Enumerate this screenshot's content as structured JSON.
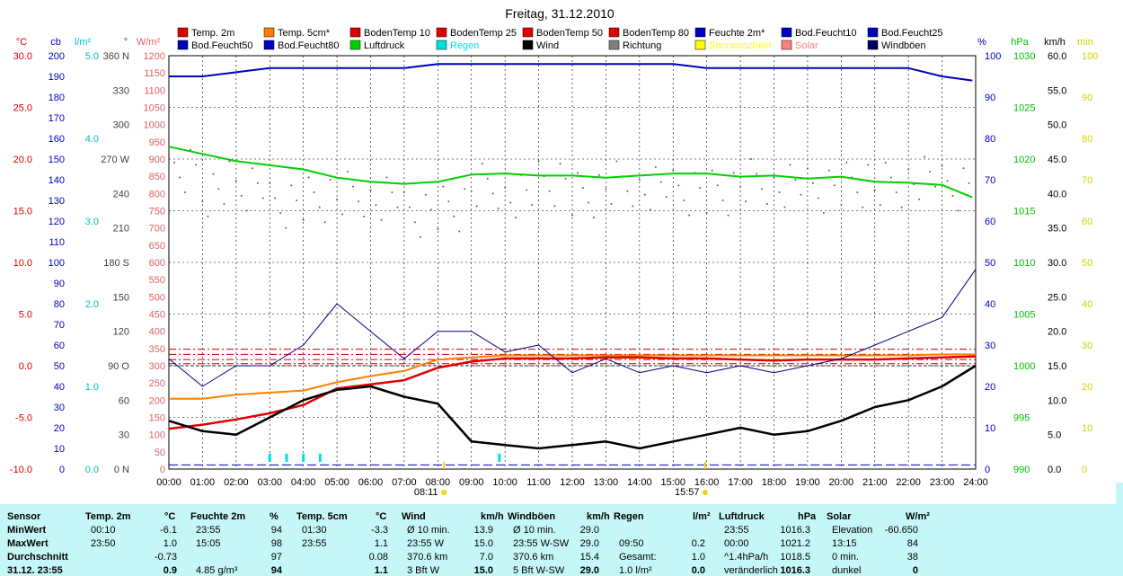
{
  "title": "Freitag, 31.12.2010",
  "legend": [
    {
      "label": "Temp. 2m",
      "color": "#e00000"
    },
    {
      "label": "Temp. 5cm*",
      "color": "#ff8000"
    },
    {
      "label": "BodenTemp 10",
      "color": "#e00000"
    },
    {
      "label": "BodenTemp 25",
      "color": "#e00000"
    },
    {
      "label": "BodenTemp 50",
      "color": "#e00000"
    },
    {
      "label": "BodenTemp 80",
      "color": "#e00000"
    },
    {
      "label": "Feuchte 2m*",
      "color": "#0000c0"
    },
    {
      "label": "Bod.Feucht10",
      "color": "#0000c0"
    },
    {
      "label": "Bod.Feucht25",
      "color": "#0000c0"
    },
    {
      "label": "Bod.Feucht50",
      "color": "#0000c0"
    },
    {
      "label": "Bod.Feucht80",
      "color": "#0000c0"
    },
    {
      "label": "Luftdruck",
      "color": "#00d000"
    },
    {
      "label": "Regen",
      "color": "#00e0e0"
    },
    {
      "label": "Wind",
      "color": "#000000"
    },
    {
      "label": "Richtung",
      "color": "#808080"
    },
    {
      "label": "Sonnenschein",
      "color": "#ffff00"
    },
    {
      "label": "Solar",
      "color": "#ff8080"
    },
    {
      "label": "Windböen",
      "color": "#000060"
    }
  ],
  "axes": {
    "temp": {
      "unit": "°C",
      "ticks": [
        "30.0",
        "25.0",
        "20.0",
        "15.0",
        "10.0",
        "5.0",
        "0.0",
        "-5.0",
        "-10.0"
      ],
      "color": "#e00000"
    },
    "cb": {
      "unit": "cb",
      "ticks": [
        "200",
        "190",
        "180",
        "170",
        "160",
        "150",
        "140",
        "130",
        "120",
        "110",
        "100",
        "90",
        "80",
        "70",
        "60",
        "50",
        "40",
        "30",
        "20",
        "10",
        "0"
      ],
      "color": "#0000c0"
    },
    "rain": {
      "unit": "l/m²",
      "ticks": [
        "5.0",
        "4.0",
        "3.0",
        "2.0",
        "1.0",
        "0.0"
      ],
      "color": "#00c0c0"
    },
    "dir": {
      "unit": "°",
      "ticks": [
        "360 N",
        "330",
        "300",
        "270 W",
        "240",
        "210",
        "180 S",
        "150",
        "120",
        "90 O",
        "60",
        "30",
        "0 N"
      ],
      "color": "#404040"
    },
    "solar": {
      "unit": "W/m²",
      "ticks": [
        "1200",
        "1150",
        "1100",
        "1050",
        "1000",
        "950",
        "900",
        "850",
        "800",
        "750",
        "700",
        "650",
        "600",
        "550",
        "500",
        "450",
        "400",
        "350",
        "300",
        "250",
        "200",
        "150",
        "100",
        "50",
        "0"
      ],
      "color": "#e06060"
    },
    "hum": {
      "unit": "%",
      "ticks": [
        "100",
        "90",
        "80",
        "70",
        "60",
        "50",
        "40",
        "30",
        "20",
        "10",
        "0"
      ],
      "color": "#0000c0"
    },
    "press": {
      "unit": "hPa",
      "ticks": [
        "1030",
        "1025",
        "1020",
        "1015",
        "1010",
        "1005",
        "1000",
        "995",
        "990"
      ],
      "color": "#00c000"
    },
    "wind": {
      "unit": "km/h",
      "ticks": [
        "60.0",
        "55.0",
        "50.0",
        "45.0",
        "40.0",
        "35.0",
        "30.0",
        "25.0",
        "20.0",
        "15.0",
        "10.0",
        "5.0",
        "0.0"
      ],
      "color": "#000000"
    },
    "min": {
      "unit": "min",
      "ticks": [
        "100",
        "90",
        "80",
        "70",
        "60",
        "50",
        "40",
        "30",
        "20",
        "10",
        "0"
      ],
      "color": "#d0d000"
    }
  },
  "x_ticks": [
    "00:00",
    "01:00",
    "02:00",
    "03:00",
    "04:00",
    "05:00",
    "06:00",
    "07:00",
    "08:00",
    "09:00",
    "10:00",
    "11:00",
    "12:00",
    "13:00",
    "14:00",
    "15:00",
    "16:00",
    "17:00",
    "18:00",
    "19:00",
    "20:00",
    "21:00",
    "22:00",
    "23:00",
    "24:00"
  ],
  "sunrise": "08:11",
  "sunset": "15:57",
  "chart_data": {
    "type": "line",
    "x_range_hours": [
      0,
      24
    ],
    "series": [
      {
        "name": "Temp. 2m",
        "axis": "temp",
        "color": "#e00000",
        "x": [
          0,
          1,
          2,
          3,
          4,
          5,
          6,
          7,
          8,
          9,
          10,
          11,
          12,
          13,
          14,
          15,
          16,
          17,
          18,
          19,
          20,
          21,
          22,
          23,
          24
        ],
        "y": [
          -6.1,
          -5.7,
          -5.2,
          -4.6,
          -3.8,
          -2.2,
          -1.8,
          -1.4,
          -0.2,
          0.4,
          0.7,
          0.7,
          0.7,
          0.8,
          0.8,
          0.7,
          0.7,
          0.6,
          0.5,
          0.6,
          0.6,
          0.6,
          0.7,
          0.8,
          0.9
        ]
      },
      {
        "name": "Temp. 5cm*",
        "axis": "temp",
        "color": "#ff8000",
        "x": [
          0,
          1,
          2,
          3,
          4,
          5,
          6,
          7,
          8,
          9,
          10,
          11,
          12,
          13,
          14,
          15,
          16,
          17,
          18,
          19,
          20,
          21,
          22,
          23,
          24
        ],
        "y": [
          -3.2,
          -3.2,
          -2.8,
          -2.6,
          -2.4,
          -1.6,
          -1.0,
          -0.5,
          0.6,
          0.8,
          1.0,
          1.0,
          1.0,
          1.0,
          1.0,
          1.0,
          1.0,
          1.0,
          1.0,
          1.0,
          1.0,
          1.0,
          1.0,
          1.1,
          1.1
        ]
      },
      {
        "name": "Feuchte 2m*",
        "axis": "hum",
        "color": "#0000c0",
        "x": [
          0,
          1,
          2,
          3,
          4,
          5,
          6,
          7,
          8,
          9,
          10,
          11,
          12,
          13,
          14,
          15,
          16,
          17,
          18,
          19,
          20,
          21,
          22,
          23,
          23.9
        ],
        "y": [
          95,
          95,
          96,
          97,
          97,
          97,
          97,
          97,
          98,
          98,
          98,
          98,
          98,
          98,
          98,
          98,
          97,
          97,
          97,
          97,
          97,
          97,
          97,
          95,
          94
        ]
      },
      {
        "name": "Luftdruck",
        "axis": "press",
        "color": "#00d000",
        "x": [
          0,
          1,
          2,
          3,
          4,
          5,
          6,
          7,
          8,
          9,
          10,
          11,
          12,
          13,
          14,
          15,
          16,
          17,
          18,
          19,
          20,
          21,
          22,
          23,
          23.9
        ],
        "y": [
          1021.2,
          1020.5,
          1019.8,
          1019.4,
          1019.0,
          1018.2,
          1017.8,
          1017.6,
          1017.8,
          1018.5,
          1018.6,
          1018.4,
          1018.4,
          1018.2,
          1018.4,
          1018.6,
          1018.6,
          1018.3,
          1018.4,
          1018.1,
          1018.3,
          1017.8,
          1017.7,
          1017.5,
          1016.3
        ]
      },
      {
        "name": "Wind",
        "axis": "wind",
        "color": "#000000",
        "x": [
          0,
          1,
          2,
          3,
          4,
          5,
          6,
          7,
          8,
          9,
          10,
          11,
          12,
          13,
          14,
          15,
          16,
          17,
          18,
          19,
          20,
          21,
          22,
          23,
          24
        ],
        "y": [
          7.0,
          5.5,
          5.0,
          7.5,
          10.0,
          11.5,
          12.0,
          10.5,
          9.5,
          4.0,
          3.5,
          3.0,
          3.5,
          4.0,
          3.0,
          4.0,
          5.0,
          6.0,
          5.0,
          5.5,
          7.0,
          9.0,
          10.0,
          12.0,
          15.0
        ]
      },
      {
        "name": "Windböen",
        "axis": "wind",
        "color": "#000080",
        "x": [
          0,
          1,
          2,
          3,
          4,
          5,
          6,
          7,
          8,
          9,
          10,
          11,
          12,
          13,
          14,
          15,
          16,
          17,
          18,
          19,
          20,
          21,
          22,
          23,
          24
        ],
        "y": [
          16,
          12,
          15,
          15,
          18,
          24,
          20,
          16,
          20,
          20,
          17,
          18,
          14,
          16,
          14,
          15,
          14,
          15,
          14,
          15,
          16,
          18,
          20,
          22,
          29
        ]
      }
    ],
    "rain": {
      "name": "Regen",
      "axis": "rain",
      "color": "#00e0e0",
      "x": [
        3.0,
        3.5,
        4.0,
        4.5,
        9.83
      ],
      "y": [
        0.1,
        0.1,
        0.1,
        0.1,
        0.1
      ]
    },
    "direction": {
      "name": "Richtung",
      "axis": "dir",
      "color": "#606060",
      "x": [
        0,
        1,
        2,
        3,
        4,
        5,
        6,
        7,
        8,
        9,
        10,
        11,
        12,
        13,
        14,
        15,
        16,
        17,
        18,
        19,
        20,
        21,
        22,
        23,
        24
      ],
      "y": [
        255,
        245,
        250,
        235,
        240,
        245,
        240,
        225,
        230,
        250,
        240,
        250,
        240,
        250,
        245,
        240,
        240,
        250,
        245,
        240,
        245,
        245,
        250,
        240,
        245
      ]
    },
    "soil_temp_levels": [
      0.2,
      0.6,
      1.1,
      1.6
    ],
    "soil_hum_level": 1
  },
  "table": {
    "sections": [
      {
        "title": "Sensor",
        "unit": "",
        "rows": [
          [
            "MinWert",
            ""
          ],
          [
            "MaxWert",
            ""
          ],
          [
            "Durchschnitt",
            ""
          ],
          [
            "31.12. 23:55",
            ""
          ]
        ]
      },
      {
        "title": "Temp. 2m",
        "unit": "°C",
        "rows": [
          [
            "00:10",
            "-6.1"
          ],
          [
            "23:50",
            "1.0"
          ],
          [
            "",
            "-0.73"
          ],
          [
            "",
            "0.9"
          ]
        ]
      },
      {
        "title": "Feuchte 2m",
        "unit": "%",
        "rows": [
          [
            "23:55",
            "94"
          ],
          [
            "15:05",
            "98"
          ],
          [
            "",
            "97"
          ],
          [
            "4.85 g/m³",
            "94"
          ]
        ]
      },
      {
        "title": "Temp. 5cm",
        "unit": "°C",
        "rows": [
          [
            "01:30",
            "-3.3"
          ],
          [
            "23:55",
            "1.1"
          ],
          [
            "",
            "0.08"
          ],
          [
            "",
            "1.1"
          ]
        ]
      },
      {
        "title": "Wind",
        "unit": "km/h",
        "rows": [
          [
            "Ø 10 min.",
            "13.9"
          ],
          [
            "23:55      W",
            "15.0"
          ],
          [
            "370.6 km",
            "7.0"
          ],
          [
            "3 Bft W",
            "15.0"
          ]
        ]
      },
      {
        "title": "Windböen",
        "unit": "km/h",
        "rows": [
          [
            "Ø 10 min.",
            "29.0"
          ],
          [
            "23:55  W-SW",
            "29.0"
          ],
          [
            "370.6 km",
            "15.4"
          ],
          [
            "5 Bft W-SW",
            "29.0"
          ]
        ]
      },
      {
        "title": "Regen",
        "unit": "l/m²",
        "rows": [
          [
            "",
            ""
          ],
          [
            "09:50",
            "0.2"
          ],
          [
            "Gesamt:",
            "1.0"
          ],
          [
            "1.0 l/m²",
            "0.0"
          ]
        ]
      },
      {
        "title": "Luftdruck",
        "unit": "hPa",
        "rows": [
          [
            "23:55",
            "1016.3"
          ],
          [
            "00:00",
            "1021.2"
          ],
          [
            "^1.4hPa/h",
            "1018.5"
          ],
          [
            "veränderlich",
            "1016.3"
          ]
        ]
      },
      {
        "title": "Solar",
        "unit": "W/m²",
        "rows": [
          [
            "Elevation",
            "-60.650"
          ],
          [
            "13:15",
            "84"
          ],
          [
            "0 min.",
            "38"
          ],
          [
            "dunkel",
            "0"
          ]
        ]
      }
    ]
  }
}
